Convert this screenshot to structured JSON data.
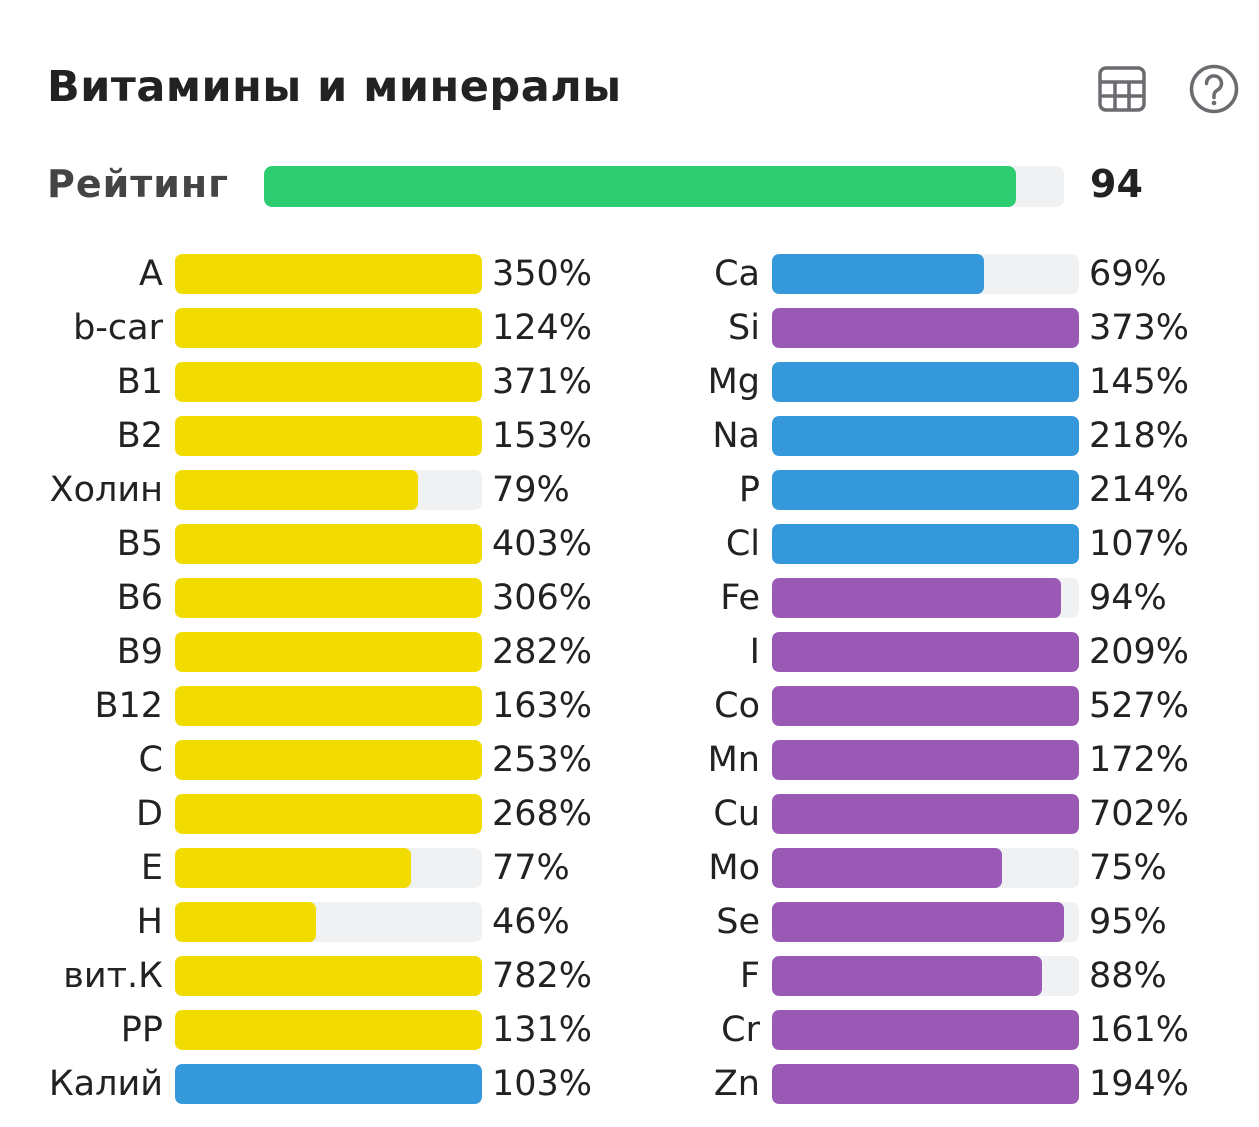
{
  "title": "Витамины и минералы",
  "icons": {
    "table": "table-icon",
    "help": "help-icon"
  },
  "colors": {
    "vitamin": "#f2dc00",
    "mineral_blue": "#3498db",
    "mineral_purple": "#9b59b6",
    "rating": "#2ecc71",
    "track": "#f0f1f3"
  },
  "rating": {
    "label": "Рейтинг",
    "value": "94",
    "percent": 94
  },
  "vitamins": [
    {
      "label": "A",
      "value": "350%",
      "percent": 350,
      "color": "#f2dc00"
    },
    {
      "label": "b-car",
      "value": "124%",
      "percent": 124,
      "color": "#f2dc00"
    },
    {
      "label": "B1",
      "value": "371%",
      "percent": 371,
      "color": "#f2dc00"
    },
    {
      "label": "B2",
      "value": "153%",
      "percent": 153,
      "color": "#f2dc00"
    },
    {
      "label": "Холин",
      "value": "79%",
      "percent": 79,
      "color": "#f2dc00"
    },
    {
      "label": "B5",
      "value": "403%",
      "percent": 403,
      "color": "#f2dc00"
    },
    {
      "label": "B6",
      "value": "306%",
      "percent": 306,
      "color": "#f2dc00"
    },
    {
      "label": "B9",
      "value": "282%",
      "percent": 282,
      "color": "#f2dc00"
    },
    {
      "label": "B12",
      "value": "163%",
      "percent": 163,
      "color": "#f2dc00"
    },
    {
      "label": "C",
      "value": "253%",
      "percent": 253,
      "color": "#f2dc00"
    },
    {
      "label": "D",
      "value": "268%",
      "percent": 268,
      "color": "#f2dc00"
    },
    {
      "label": "E",
      "value": "77%",
      "percent": 77,
      "color": "#f2dc00"
    },
    {
      "label": "H",
      "value": "46%",
      "percent": 46,
      "color": "#f2dc00"
    },
    {
      "label": "вит.К",
      "value": "782%",
      "percent": 782,
      "color": "#f2dc00"
    },
    {
      "label": "PP",
      "value": "131%",
      "percent": 131,
      "color": "#f2dc00"
    },
    {
      "label": "Калий",
      "value": "103%",
      "percent": 103,
      "color": "#3498db"
    }
  ],
  "minerals": [
    {
      "label": "Ca",
      "value": "69%",
      "percent": 69,
      "color": "#3498db"
    },
    {
      "label": "Si",
      "value": "373%",
      "percent": 373,
      "color": "#9b59b6"
    },
    {
      "label": "Mg",
      "value": "145%",
      "percent": 145,
      "color": "#3498db"
    },
    {
      "label": "Na",
      "value": "218%",
      "percent": 218,
      "color": "#3498db"
    },
    {
      "label": "P",
      "value": "214%",
      "percent": 214,
      "color": "#3498db"
    },
    {
      "label": "Cl",
      "value": "107%",
      "percent": 107,
      "color": "#3498db"
    },
    {
      "label": "Fe",
      "value": "94%",
      "percent": 94,
      "color": "#9b59b6"
    },
    {
      "label": "I",
      "value": "209%",
      "percent": 209,
      "color": "#9b59b6"
    },
    {
      "label": "Co",
      "value": "527%",
      "percent": 527,
      "color": "#9b59b6"
    },
    {
      "label": "Mn",
      "value": "172%",
      "percent": 172,
      "color": "#9b59b6"
    },
    {
      "label": "Cu",
      "value": "702%",
      "percent": 702,
      "color": "#9b59b6"
    },
    {
      "label": "Mo",
      "value": "75%",
      "percent": 75,
      "color": "#9b59b6"
    },
    {
      "label": "Se",
      "value": "95%",
      "percent": 95,
      "color": "#9b59b6"
    },
    {
      "label": "F",
      "value": "88%",
      "percent": 88,
      "color": "#9b59b6"
    },
    {
      "label": "Cr",
      "value": "161%",
      "percent": 161,
      "color": "#9b59b6"
    },
    {
      "label": "Zn",
      "value": "194%",
      "percent": 194,
      "color": "#9b59b6"
    }
  ]
}
